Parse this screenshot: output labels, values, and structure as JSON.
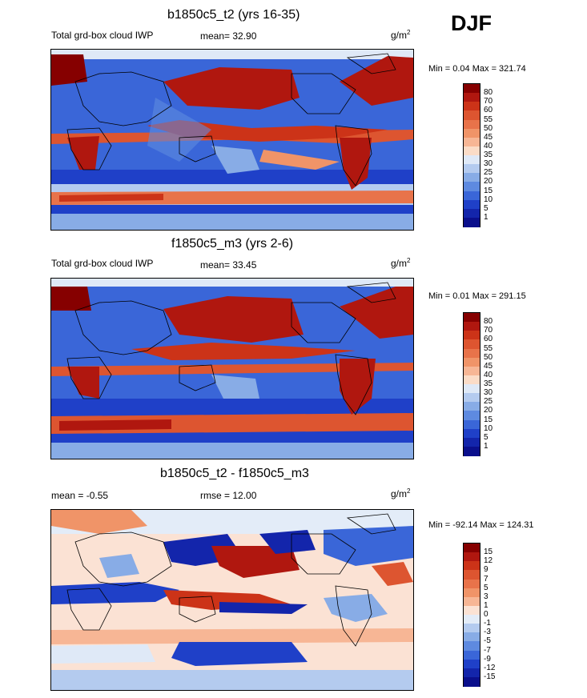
{
  "season": "DJF",
  "panels": [
    {
      "title": "b1850c5_t2 (yrs 16-35)",
      "left_label": "Total grd-box cloud IWP",
      "mean_text": "mean=  32.90",
      "units": "g/m",
      "units_sup": "2",
      "minmax": "Min =   0.04 Max = 321.74",
      "colorbar": {
        "ticks": [
          "80",
          "70",
          "60",
          "55",
          "50",
          "45",
          "40",
          "35",
          "30",
          "25",
          "20",
          "15",
          "10",
          "5",
          "1"
        ],
        "colors": [
          "#860000",
          "#b0170f",
          "#cc3318",
          "#dd5530",
          "#e8734a",
          "#f09468",
          "#f7b695",
          "#fbdcc7",
          "#dfe9f7",
          "#b4cbef",
          "#88ace6",
          "#5e8ae0",
          "#3a66d8",
          "#1f40c8",
          "#1325ab",
          "#0a0f8c"
        ]
      }
    },
    {
      "title": "f1850c5_m3 (yrs 2-6)",
      "left_label": "Total grd-box cloud IWP",
      "mean_text": "mean=  33.45",
      "units": "g/m",
      "units_sup": "2",
      "minmax": "Min =   0.01 Max = 291.15",
      "colorbar": {
        "ticks": [
          "80",
          "70",
          "60",
          "55",
          "50",
          "45",
          "40",
          "35",
          "30",
          "25",
          "20",
          "15",
          "10",
          "5",
          "1"
        ],
        "colors": [
          "#860000",
          "#b0170f",
          "#cc3318",
          "#dd5530",
          "#e8734a",
          "#f09468",
          "#f7b695",
          "#fbdcc7",
          "#dfe9f7",
          "#b4cbef",
          "#88ace6",
          "#5e8ae0",
          "#3a66d8",
          "#1f40c8",
          "#1325ab",
          "#0a0f8c"
        ]
      }
    },
    {
      "title": "b1850c5_t2 - f1850c5_m3",
      "left_label": "mean =  -0.55",
      "mean_text": "rmse =  12.00",
      "units": "g/m",
      "units_sup": "2",
      "minmax": "Min = -92.14 Max = 124.31",
      "colorbar": {
        "ticks": [
          "15",
          "12",
          "9",
          "7",
          "5",
          "3",
          "1",
          "0",
          "-1",
          "-3",
          "-5",
          "-7",
          "-9",
          "-12",
          "-15"
        ],
        "colors": [
          "#860000",
          "#b0170f",
          "#cc3318",
          "#dd5530",
          "#e8734a",
          "#f09468",
          "#f7b695",
          "#fbe2d4",
          "#e3ecf8",
          "#b4cbef",
          "#88ace6",
          "#5e8ae0",
          "#3a66d8",
          "#1f40c8",
          "#1325ab",
          "#0a0f8c"
        ]
      }
    }
  ]
}
